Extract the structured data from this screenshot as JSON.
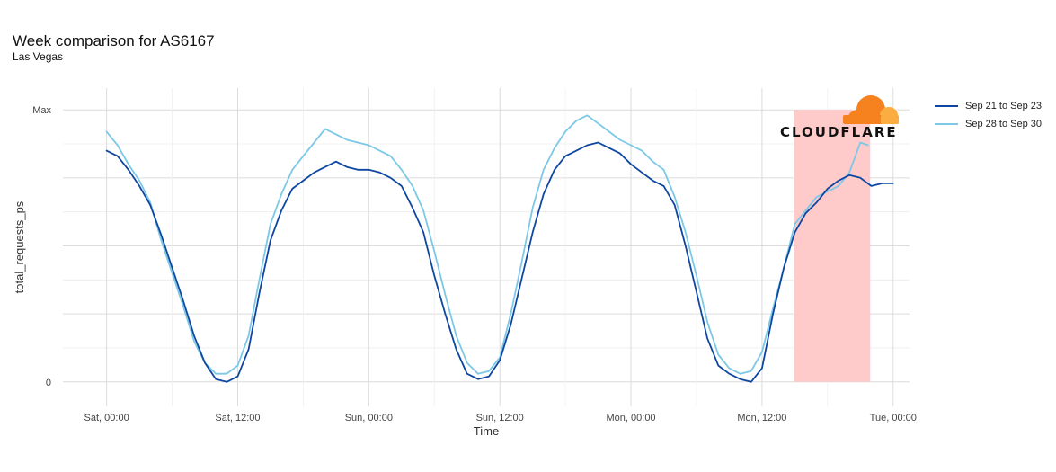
{
  "title": "Week comparison for AS6167",
  "subtitle": "Las Vegas",
  "logo_text": "CLOUDFLARE",
  "chart_data": {
    "type": "line",
    "xlabel": "Time",
    "ylabel": "total_requests_ps",
    "x_ticks": [
      "Sat, 00:00",
      "Sat, 12:00",
      "Sun, 00:00",
      "Sun, 12:00",
      "Mon, 00:00",
      "Mon, 12:00",
      "Tue, 00:00"
    ],
    "x_tick_hours": [
      0,
      12,
      24,
      36,
      48,
      60,
      72
    ],
    "y_ticks": [
      "Max",
      "0"
    ],
    "y_tick_values": [
      1,
      0
    ],
    "xlim_hours": [
      -4,
      73.5
    ],
    "ylim": [
      -0.09,
      1.08
    ],
    "grid": true,
    "legend_position": "right",
    "highlight": {
      "x_start_hours": 62.9,
      "x_end_hours": 69.9,
      "color": "#ffc7c7"
    },
    "series": [
      {
        "name": "Sep 21 to Sep 23",
        "color": "#0d47a1",
        "points": [
          [
            0,
            0.85
          ],
          [
            1,
            0.83
          ],
          [
            2,
            0.78
          ],
          [
            3,
            0.72
          ],
          [
            4,
            0.65
          ],
          [
            5,
            0.54
          ],
          [
            6,
            0.42
          ],
          [
            7,
            0.3
          ],
          [
            8,
            0.17
          ],
          [
            9,
            0.07
          ],
          [
            10,
            0.01
          ],
          [
            11,
            0.0
          ],
          [
            12,
            0.02
          ],
          [
            13,
            0.12
          ],
          [
            14,
            0.33
          ],
          [
            15,
            0.52
          ],
          [
            16,
            0.63
          ],
          [
            17,
            0.71
          ],
          [
            18,
            0.74
          ],
          [
            19,
            0.77
          ],
          [
            20,
            0.79
          ],
          [
            21,
            0.81
          ],
          [
            22,
            0.79
          ],
          [
            23,
            0.78
          ],
          [
            24,
            0.78
          ],
          [
            25,
            0.77
          ],
          [
            26,
            0.75
          ],
          [
            27,
            0.72
          ],
          [
            28,
            0.64
          ],
          [
            29,
            0.55
          ],
          [
            30,
            0.39
          ],
          [
            31,
            0.25
          ],
          [
            32,
            0.12
          ],
          [
            33,
            0.03
          ],
          [
            34,
            0.01
          ],
          [
            35,
            0.02
          ],
          [
            36,
            0.08
          ],
          [
            37,
            0.21
          ],
          [
            38,
            0.38
          ],
          [
            39,
            0.55
          ],
          [
            40,
            0.69
          ],
          [
            41,
            0.78
          ],
          [
            42,
            0.83
          ],
          [
            43,
            0.85
          ],
          [
            44,
            0.87
          ],
          [
            45,
            0.88
          ],
          [
            46,
            0.86
          ],
          [
            47,
            0.84
          ],
          [
            48,
            0.8
          ],
          [
            49,
            0.77
          ],
          [
            50,
            0.74
          ],
          [
            51,
            0.72
          ],
          [
            52,
            0.65
          ],
          [
            53,
            0.5
          ],
          [
            54,
            0.33
          ],
          [
            55,
            0.16
          ],
          [
            56,
            0.06
          ],
          [
            57,
            0.03
          ],
          [
            58,
            0.01
          ],
          [
            59,
            0.0
          ],
          [
            60,
            0.05
          ],
          [
            61,
            0.25
          ],
          [
            62,
            0.42
          ],
          [
            63,
            0.55
          ],
          [
            64,
            0.62
          ],
          [
            65,
            0.66
          ],
          [
            66,
            0.71
          ],
          [
            67,
            0.74
          ],
          [
            68,
            0.76
          ],
          [
            69,
            0.75
          ],
          [
            70,
            0.72
          ],
          [
            71,
            0.73
          ],
          [
            72,
            0.73
          ]
        ]
      },
      {
        "name": "Sep 28 to Sep 30",
        "color": "#7cc8e6",
        "points": [
          [
            0,
            0.92
          ],
          [
            1,
            0.87
          ],
          [
            2,
            0.8
          ],
          [
            3,
            0.74
          ],
          [
            4,
            0.66
          ],
          [
            5,
            0.52
          ],
          [
            6,
            0.4
          ],
          [
            7,
            0.28
          ],
          [
            8,
            0.15
          ],
          [
            9,
            0.07
          ],
          [
            10,
            0.03
          ],
          [
            11,
            0.03
          ],
          [
            12,
            0.06
          ],
          [
            13,
            0.17
          ],
          [
            14,
            0.38
          ],
          [
            15,
            0.58
          ],
          [
            16,
            0.69
          ],
          [
            17,
            0.78
          ],
          [
            18,
            0.83
          ],
          [
            19,
            0.88
          ],
          [
            20,
            0.93
          ],
          [
            21,
            0.91
          ],
          [
            22,
            0.89
          ],
          [
            23,
            0.88
          ],
          [
            24,
            0.87
          ],
          [
            25,
            0.85
          ],
          [
            26,
            0.83
          ],
          [
            27,
            0.78
          ],
          [
            28,
            0.72
          ],
          [
            29,
            0.63
          ],
          [
            30,
            0.48
          ],
          [
            31,
            0.32
          ],
          [
            32,
            0.17
          ],
          [
            33,
            0.07
          ],
          [
            34,
            0.03
          ],
          [
            35,
            0.04
          ],
          [
            36,
            0.09
          ],
          [
            37,
            0.25
          ],
          [
            38,
            0.44
          ],
          [
            39,
            0.64
          ],
          [
            40,
            0.78
          ],
          [
            41,
            0.86
          ],
          [
            42,
            0.92
          ],
          [
            43,
            0.96
          ],
          [
            44,
            0.98
          ],
          [
            45,
            0.95
          ],
          [
            46,
            0.92
          ],
          [
            47,
            0.89
          ],
          [
            48,
            0.87
          ],
          [
            49,
            0.85
          ],
          [
            50,
            0.81
          ],
          [
            51,
            0.78
          ],
          [
            52,
            0.68
          ],
          [
            53,
            0.55
          ],
          [
            54,
            0.39
          ],
          [
            55,
            0.22
          ],
          [
            56,
            0.1
          ],
          [
            57,
            0.05
          ],
          [
            58,
            0.03
          ],
          [
            59,
            0.04
          ],
          [
            60,
            0.11
          ],
          [
            61,
            0.27
          ],
          [
            62,
            0.42
          ],
          [
            63,
            0.58
          ],
          [
            64,
            0.63
          ],
          [
            65,
            0.68
          ],
          [
            66,
            0.7
          ],
          [
            67,
            0.72
          ],
          [
            68,
            0.77
          ],
          [
            69,
            0.88
          ],
          [
            69.7,
            0.87
          ]
        ]
      }
    ]
  }
}
